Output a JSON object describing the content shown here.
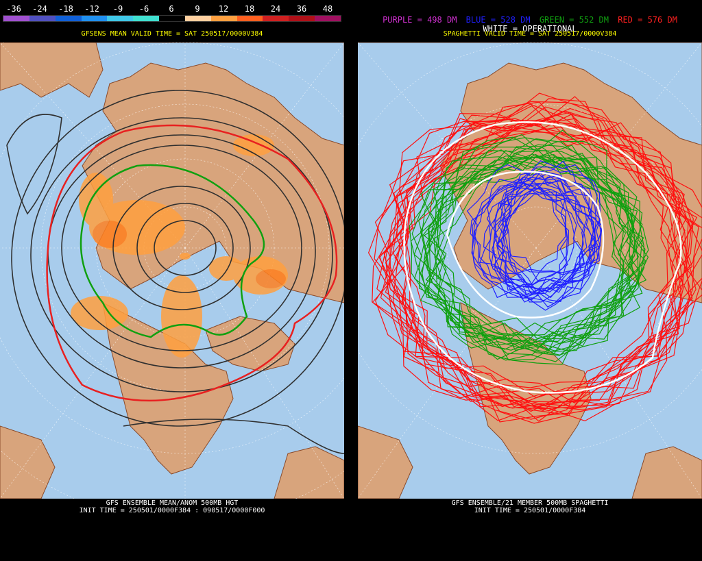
{
  "left": {
    "scale_ticks": [
      "-36",
      "-24",
      "-18",
      "-12",
      "-9",
      "-6",
      "6",
      "9",
      "12",
      "18",
      "24",
      "36",
      "48"
    ],
    "scale_colors": [
      "#a050d0",
      "#5050c0",
      "#1060d8",
      "#2090f0",
      "#40c8e8",
      "#40e0d0",
      "#000000",
      "#ffd0a0",
      "#ffa040",
      "#ff6020",
      "#d02020",
      "#b01018",
      "#a01060"
    ],
    "valid_title": "GFSENS MEAN VALID TIME = SAT 250517/0000V384",
    "footer_line1": "GFS ENSEMBLE MEAN/ANOM 500MB HGT",
    "footer_line2": "INIT TIME = 250501/0000F384 : 090517/0000F000"
  },
  "right": {
    "legend": [
      {
        "text": "PURPLE = 498 DM",
        "color": "#d030d0"
      },
      {
        "text": "BLUE = 528 DM",
        "color": "#2020ff"
      },
      {
        "text": "GREEN = 552 DM",
        "color": "#10a010"
      },
      {
        "text": "RED = 576 DM",
        "color": "#ff2020"
      }
    ],
    "operational_label": "WHITE = OPERATIONAL",
    "valid_title": "SPAGHETTI VALID TIME = SAT 250517/0000V384",
    "footer_line1": "GFS ENSEMBLE/21 MEMBER 500MB SPAGHETTI",
    "footer_line2": "INIT TIME = 250501/0000F384"
  }
}
